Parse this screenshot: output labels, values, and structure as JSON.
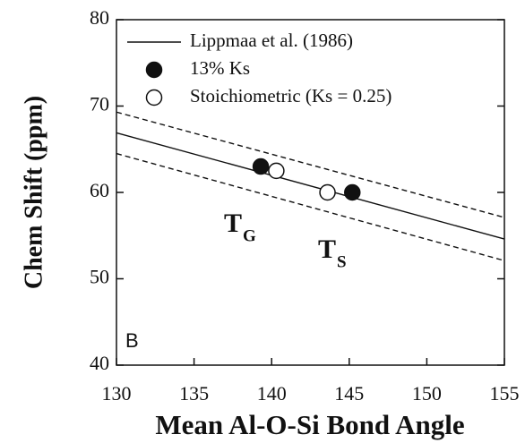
{
  "chart_data": {
    "type": "scatter",
    "xlabel": "Mean Al-O-Si Bond Angle",
    "ylabel": "Chem Shift (ppm)",
    "panel_label": "B",
    "xlim": [
      130,
      155
    ],
    "xticks": [
      130,
      135,
      140,
      145,
      150,
      155
    ],
    "ylim": [
      40,
      80
    ],
    "yticks": [
      40,
      50,
      60,
      70,
      80
    ],
    "grid": false,
    "legend": "upper left",
    "series": [
      {
        "name": "Lippmaa  et al. (1986)",
        "type": "line",
        "color": "#111111",
        "dash": false,
        "x": [
          130,
          155
        ],
        "values": [
          66.9,
          54.6
        ]
      },
      {
        "name": "13% Ks",
        "type": "scatter",
        "marker": "filled",
        "color": "#111111",
        "x": [
          139.3,
          145.2
        ],
        "values": [
          63,
          60
        ]
      },
      {
        "name": "Stoichiometric (Ks = 0.25)",
        "type": "scatter",
        "marker": "open",
        "color": "#111111",
        "x": [
          140.3,
          143.6
        ],
        "values": [
          62.5,
          60
        ]
      },
      {
        "type": "line",
        "color": "#111111",
        "dash": true,
        "x": [
          130,
          155
        ],
        "values": [
          69.3,
          57.1
        ]
      },
      {
        "type": "line",
        "color": "#111111",
        "dash": true,
        "x": [
          130,
          155
        ],
        "values": [
          64.5,
          52.1
        ]
      }
    ],
    "annotations": [
      {
        "text": "T",
        "sub": "G"
      },
      {
        "text": "T",
        "sub": "S"
      }
    ]
  }
}
